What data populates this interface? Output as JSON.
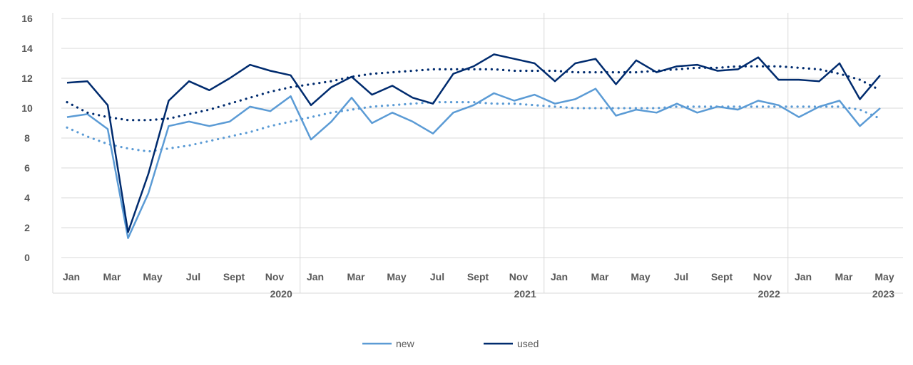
{
  "chart_data": {
    "type": "line",
    "title": "",
    "xlabel": "",
    "ylabel": "",
    "ylim": [
      0,
      16
    ],
    "yticks": [
      "0",
      "2",
      "4",
      "6",
      "8",
      "10",
      "12",
      "14",
      "16"
    ],
    "grid": true,
    "legend_position": "bottom",
    "x": [
      "Jan 2020",
      "Feb 2020",
      "Mar 2020",
      "Apr 2020",
      "May 2020",
      "Jun 2020",
      "Jul 2020",
      "Aug 2020",
      "Sept 2020",
      "Oct 2020",
      "Nov 2020",
      "Dec 2020",
      "Jan 2021",
      "Feb 2021",
      "Mar 2021",
      "Apr 2021",
      "May 2021",
      "Jun 2021",
      "Jul 2021",
      "Aug 2021",
      "Sept 2021",
      "Oct 2021",
      "Nov 2021",
      "Dec 2021",
      "Jan 2022",
      "Feb 2022",
      "Mar 2022",
      "Apr 2022",
      "May 2022",
      "Jun 2022",
      "Jul 2022",
      "Aug 2022",
      "Sept 2022",
      "Oct 2022",
      "Nov 2022",
      "Dec 2022",
      "Jan 2023",
      "Feb 2023",
      "Mar 2023",
      "Apr 2023",
      "May 2023"
    ],
    "tick_labels": [
      "Jan",
      "",
      "Mar",
      "",
      "May",
      "",
      "Jul",
      "",
      "Sept",
      "",
      "Nov",
      "",
      "Jan",
      "",
      "Mar",
      "",
      "May",
      "",
      "Jul",
      "",
      "Sept",
      "",
      "Nov",
      "",
      "Jan",
      "",
      "Mar",
      "",
      "May",
      "",
      "Jul",
      "",
      "Sept",
      "",
      "Nov",
      "",
      "Jan",
      "",
      "Mar",
      "",
      "May"
    ],
    "year_groups": [
      {
        "label": "2020",
        "start": 0,
        "end": 11
      },
      {
        "label": "2021",
        "start": 12,
        "end": 23
      },
      {
        "label": "2022",
        "start": 24,
        "end": 35
      },
      {
        "label": "2023",
        "start": 36,
        "end": 40
      }
    ],
    "series": [
      {
        "name": "new",
        "color": "#5b9bd5",
        "values": [
          9.4,
          9.6,
          8.6,
          1.3,
          4.3,
          8.8,
          9.1,
          8.8,
          9.1,
          10.1,
          9.8,
          10.8,
          7.9,
          9.1,
          10.7,
          9.0,
          9.7,
          9.1,
          8.3,
          9.7,
          10.2,
          11.0,
          10.5,
          10.9,
          10.3,
          10.6,
          11.3,
          9.5,
          9.9,
          9.7,
          10.3,
          9.7,
          10.1,
          9.9,
          10.5,
          10.2,
          9.4,
          10.1,
          10.5,
          8.8,
          10.0
        ],
        "trend_values": [
          8.7,
          8.1,
          7.6,
          7.3,
          7.1,
          7.3,
          7.5,
          7.8,
          8.1,
          8.4,
          8.8,
          9.1,
          9.4,
          9.7,
          9.9,
          10.1,
          10.2,
          10.3,
          10.4,
          10.4,
          10.4,
          10.3,
          10.3,
          10.2,
          10.1,
          10.0,
          10.0,
          10.0,
          10.0,
          10.0,
          10.1,
          10.1,
          10.1,
          10.1,
          10.1,
          10.1,
          10.1,
          10.1,
          10.1,
          9.9,
          9.3
        ]
      },
      {
        "name": "used",
        "color": "#002b6e",
        "values": [
          11.7,
          11.8,
          10.2,
          1.7,
          5.6,
          10.5,
          11.8,
          11.2,
          12.0,
          12.9,
          12.5,
          12.2,
          10.2,
          11.4,
          12.1,
          10.9,
          11.5,
          10.7,
          10.3,
          12.3,
          12.8,
          13.6,
          13.3,
          13.0,
          11.8,
          13.0,
          13.3,
          11.6,
          13.2,
          12.4,
          12.8,
          12.9,
          12.5,
          12.6,
          13.4,
          11.9,
          11.9,
          11.8,
          13.0,
          10.6,
          12.2
        ],
        "trend_values": [
          10.4,
          9.7,
          9.4,
          9.2,
          9.2,
          9.3,
          9.6,
          9.9,
          10.3,
          10.7,
          11.1,
          11.4,
          11.6,
          11.8,
          12.1,
          12.3,
          12.4,
          12.5,
          12.6,
          12.6,
          12.6,
          12.6,
          12.5,
          12.5,
          12.5,
          12.4,
          12.4,
          12.4,
          12.4,
          12.5,
          12.6,
          12.7,
          12.7,
          12.8,
          12.8,
          12.8,
          12.7,
          12.6,
          12.3,
          11.9,
          11.2
        ]
      }
    ]
  }
}
